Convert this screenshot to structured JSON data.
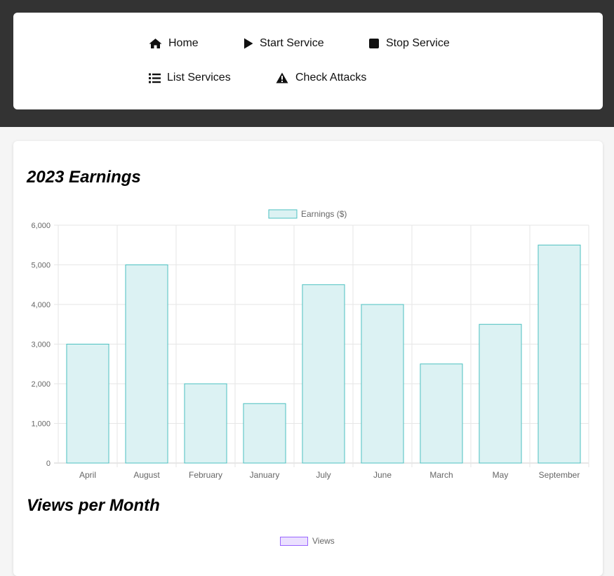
{
  "nav": {
    "items": [
      {
        "label": "Home",
        "icon": "home-icon"
      },
      {
        "label": "Start Service",
        "icon": "play-icon"
      },
      {
        "label": "Stop Service",
        "icon": "stop-icon"
      },
      {
        "label": "List Services",
        "icon": "list-icon"
      },
      {
        "label": "Check Attacks",
        "icon": "warning-icon"
      }
    ]
  },
  "sections": {
    "earnings_title": "2023 Earnings",
    "views_title": "Views per Month",
    "views_legend": "Views"
  },
  "colors": {
    "earnings_fill": "#dcf2f3",
    "earnings_border": "#4bc0c0",
    "views_fill": "#ebe0ff",
    "views_border": "#9966ff"
  },
  "chart_data": [
    {
      "type": "bar",
      "categories": [
        "April",
        "August",
        "February",
        "January",
        "July",
        "June",
        "March",
        "May",
        "September"
      ],
      "series": [
        {
          "name": "Earnings ($)",
          "values": [
            3000,
            5000,
            2000,
            1500,
            4500,
            4000,
            2500,
            3500,
            5500
          ]
        }
      ],
      "ylim": [
        0,
        6000
      ],
      "yticks": [
        "0",
        "1,000",
        "2,000",
        "3,000",
        "4,000",
        "5,000",
        "6,000"
      ],
      "grid": true,
      "legend": "top"
    }
  ]
}
